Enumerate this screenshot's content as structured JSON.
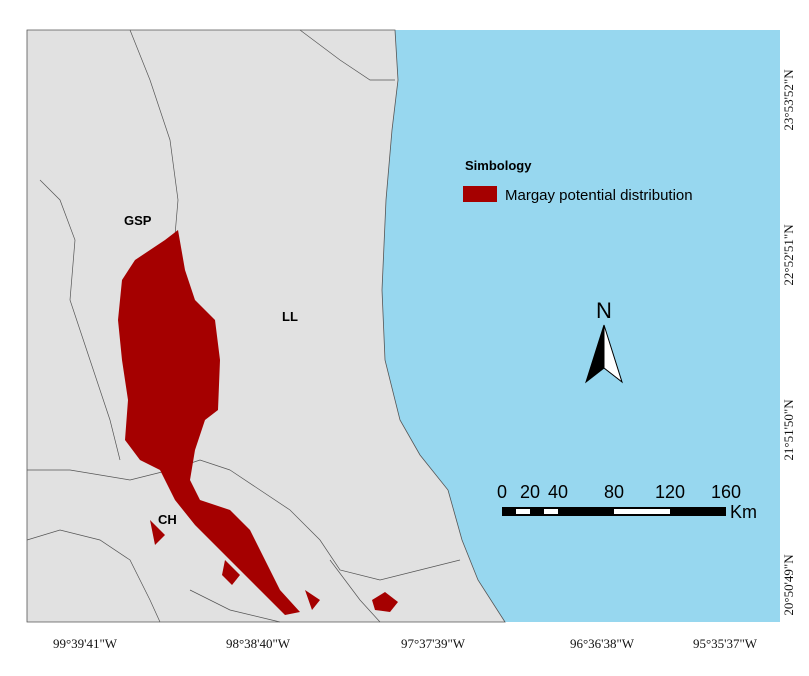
{
  "map": {
    "labels": {
      "gsp": "GSP",
      "ll": "LL",
      "ch": "CH"
    },
    "legend": {
      "title": "Simbology",
      "entry": "Margay potential distribution"
    },
    "north_arrow": "N",
    "scale_bar": {
      "ticks": [
        0,
        20,
        40,
        80,
        120,
        160
      ],
      "unit": "Km"
    },
    "longitude_labels": [
      "99°39'41\"W",
      "98°38'40\"W",
      "97°37'39\"W",
      "96°36'38\"W",
      "95°35'37\"W"
    ],
    "latitude_labels": [
      "23°53'52\"N",
      "22°52'51\"N",
      "21°51'50\"N",
      "20°50'49\"N"
    ]
  }
}
